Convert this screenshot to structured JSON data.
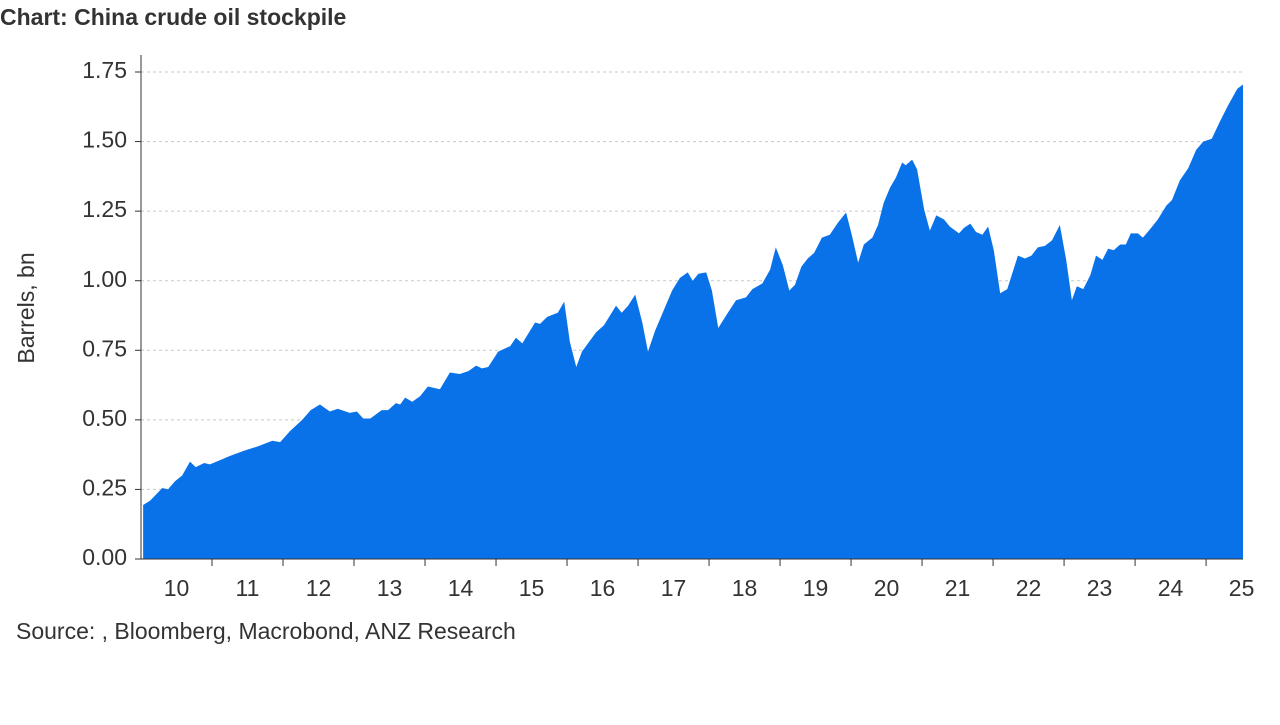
{
  "chart_data": {
    "type": "area",
    "title": "Chart: China crude oil stockpile",
    "y_label": "Barrels, bn",
    "source": "Source: , Bloomberg, Macrobond, ANZ Research",
    "color": "#0a72e8",
    "grid": true,
    "xlim": [
      10,
      25.52
    ],
    "ylim": [
      0,
      1.75
    ],
    "yticks": [
      {
        "value": 0,
        "label": "0.00"
      },
      {
        "value": 0.25,
        "label": "0.25"
      },
      {
        "value": 0.5,
        "label": "0.50"
      },
      {
        "value": 0.75,
        "label": "0.75"
      },
      {
        "value": 1,
        "label": "1.00"
      },
      {
        "value": 1.25,
        "label": "1.25"
      },
      {
        "value": 1.5,
        "label": "1.50"
      },
      {
        "value": 1.75,
        "label": "1.75"
      }
    ],
    "xticks": [
      {
        "value": 10.5,
        "label": "10"
      },
      {
        "value": 11.5,
        "label": "11"
      },
      {
        "value": 12.5,
        "label": "12"
      },
      {
        "value": 13.5,
        "label": "13"
      },
      {
        "value": 14.5,
        "label": "14"
      },
      {
        "value": 15.5,
        "label": "15"
      },
      {
        "value": 16.5,
        "label": "16"
      },
      {
        "value": 17.5,
        "label": "17"
      },
      {
        "value": 18.5,
        "label": "18"
      },
      {
        "value": 19.5,
        "label": "19"
      },
      {
        "value": 20.5,
        "label": "20"
      },
      {
        "value": 21.5,
        "label": "21"
      },
      {
        "value": 22.5,
        "label": "22"
      },
      {
        "value": 23.5,
        "label": "23"
      },
      {
        "value": 24.5,
        "label": "24"
      },
      {
        "value": 25.5,
        "label": "25"
      }
    ],
    "x": [
      10.03,
      10.13,
      10.3,
      10.38,
      10.48,
      10.58,
      10.69,
      10.77,
      10.89,
      10.97,
      11.11,
      11.25,
      11.46,
      11.65,
      11.85,
      11.96,
      12.1,
      12.27,
      12.39,
      12.52,
      12.66,
      12.77,
      12.94,
      13.04,
      13.13,
      13.23,
      13.39,
      13.48,
      13.59,
      13.65,
      13.72,
      13.82,
      13.93,
      14.04,
      14.21,
      14.35,
      14.49,
      14.61,
      14.72,
      14.8,
      14.89,
      15.03,
      15.2,
      15.28,
      15.37,
      15.55,
      15.62,
      15.72,
      15.87,
      15.96,
      16.04,
      16.13,
      16.21,
      16.41,
      16.52,
      16.69,
      16.77,
      16.86,
      16.96,
      17.06,
      17.14,
      17.24,
      17.48,
      17.59,
      17.7,
      17.77,
      17.85,
      17.96,
      18.04,
      18.13,
      18.24,
      18.38,
      18.52,
      18.61,
      18.75,
      18.86,
      18.94,
      19.04,
      19.13,
      19.21,
      19.3,
      19.39,
      19.48,
      19.59,
      19.7,
      19.82,
      19.93,
      20.01,
      20.1,
      20.18,
      20.3,
      20.38,
      20.46,
      20.55,
      20.63,
      20.72,
      20.77,
      20.86,
      20.93,
      21.03,
      21.11,
      21.2,
      21.31,
      21.39,
      21.52,
      21.59,
      21.68,
      21.76,
      21.85,
      21.93,
      22.01,
      22.1,
      22.2,
      22.35,
      22.45,
      22.54,
      22.63,
      22.73,
      22.83,
      22.94,
      23.03,
      23.11,
      23.18,
      23.27,
      23.37,
      23.45,
      23.54,
      23.62,
      23.7,
      23.79,
      23.87,
      23.94,
      24.04,
      24.11,
      24.21,
      24.32,
      24.44,
      24.52,
      24.63,
      24.75,
      24.86,
      24.96,
      25.08,
      25.2,
      25.31,
      25.44,
      25.52
    ],
    "values": [
      0.194,
      0.21,
      0.255,
      0.25,
      0.28,
      0.3,
      0.35,
      0.33,
      0.345,
      0.34,
      0.355,
      0.37,
      0.39,
      0.405,
      0.425,
      0.42,
      0.46,
      0.5,
      0.535,
      0.555,
      0.53,
      0.54,
      0.525,
      0.53,
      0.505,
      0.505,
      0.535,
      0.535,
      0.56,
      0.555,
      0.58,
      0.565,
      0.585,
      0.62,
      0.61,
      0.67,
      0.665,
      0.675,
      0.695,
      0.685,
      0.69,
      0.745,
      0.765,
      0.795,
      0.775,
      0.85,
      0.845,
      0.87,
      0.885,
      0.925,
      0.78,
      0.69,
      0.745,
      0.815,
      0.84,
      0.91,
      0.885,
      0.91,
      0.95,
      0.85,
      0.745,
      0.82,
      0.965,
      1.01,
      1.03,
      1.0,
      1.025,
      1.03,
      0.965,
      0.83,
      0.875,
      0.93,
      0.94,
      0.97,
      0.99,
      1.04,
      1.12,
      1.055,
      0.965,
      0.985,
      1.05,
      1.08,
      1.1,
      1.155,
      1.165,
      1.21,
      1.245,
      1.165,
      1.065,
      1.13,
      1.155,
      1.2,
      1.28,
      1.335,
      1.37,
      1.425,
      1.415,
      1.435,
      1.4,
      1.255,
      1.18,
      1.235,
      1.22,
      1.195,
      1.17,
      1.19,
      1.205,
      1.175,
      1.165,
      1.195,
      1.11,
      0.955,
      0.97,
      1.09,
      1.08,
      1.09,
      1.12,
      1.125,
      1.145,
      1.2,
      1.075,
      0.93,
      0.98,
      0.97,
      1.02,
      1.09,
      1.075,
      1.115,
      1.11,
      1.13,
      1.13,
      1.17,
      1.17,
      1.155,
      1.185,
      1.22,
      1.27,
      1.29,
      1.36,
      1.405,
      1.47,
      1.5,
      1.51,
      1.575,
      1.63,
      1.69,
      1.705
    ]
  }
}
